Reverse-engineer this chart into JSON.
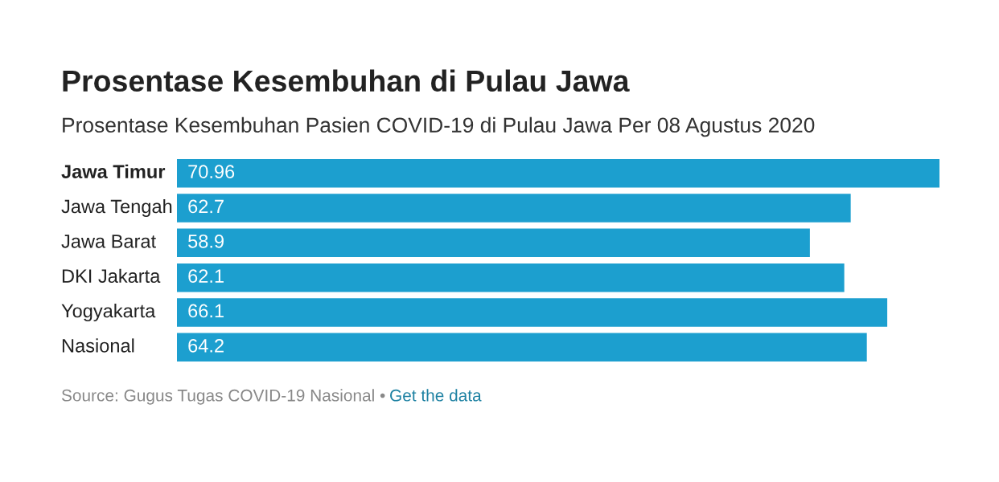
{
  "chart_data": {
    "type": "bar",
    "orientation": "horizontal",
    "title": "Prosentase Kesembuhan di Pulau Jawa",
    "subtitle": "Prosentase Kesembuhan Pasien COVID-19 di Pulau Jawa Per 08 Agustus 2020",
    "categories": [
      "Jawa Timur",
      "Jawa Tengah",
      "Jawa Barat",
      "DKI Jakarta",
      "Yogyakarta",
      "Nasional"
    ],
    "values": [
      70.96,
      62.7,
      58.9,
      62.1,
      66.1,
      64.2
    ],
    "color": "#1c9fcf",
    "data_labels": true,
    "annotations": [
      "Source: Gugus Tugas COVID-19 Nasional • ",
      "Get the data"
    ]
  }
}
